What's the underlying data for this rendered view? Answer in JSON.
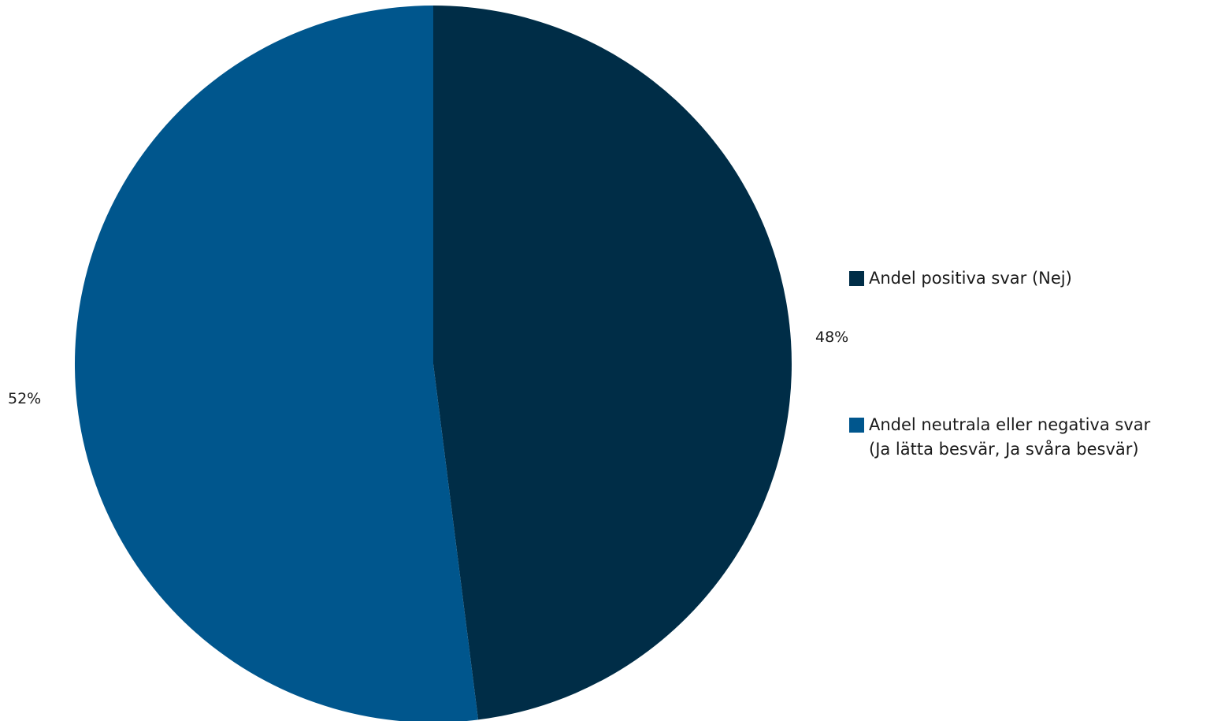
{
  "chart_data": {
    "type": "pie",
    "title": "",
    "start_angle_deg": 0,
    "direction": "clockwise",
    "categories": [
      "Andel positiva svar (Nej)",
      "Andel neutrala eller negativa svar\n(Ja lätta besvär, Ja svåra besvär)"
    ],
    "values": [
      48,
      52
    ],
    "value_labels": [
      "48%",
      "52%"
    ],
    "colors": [
      "#002d47",
      "#00568d"
    ],
    "legend_position": "right"
  }
}
